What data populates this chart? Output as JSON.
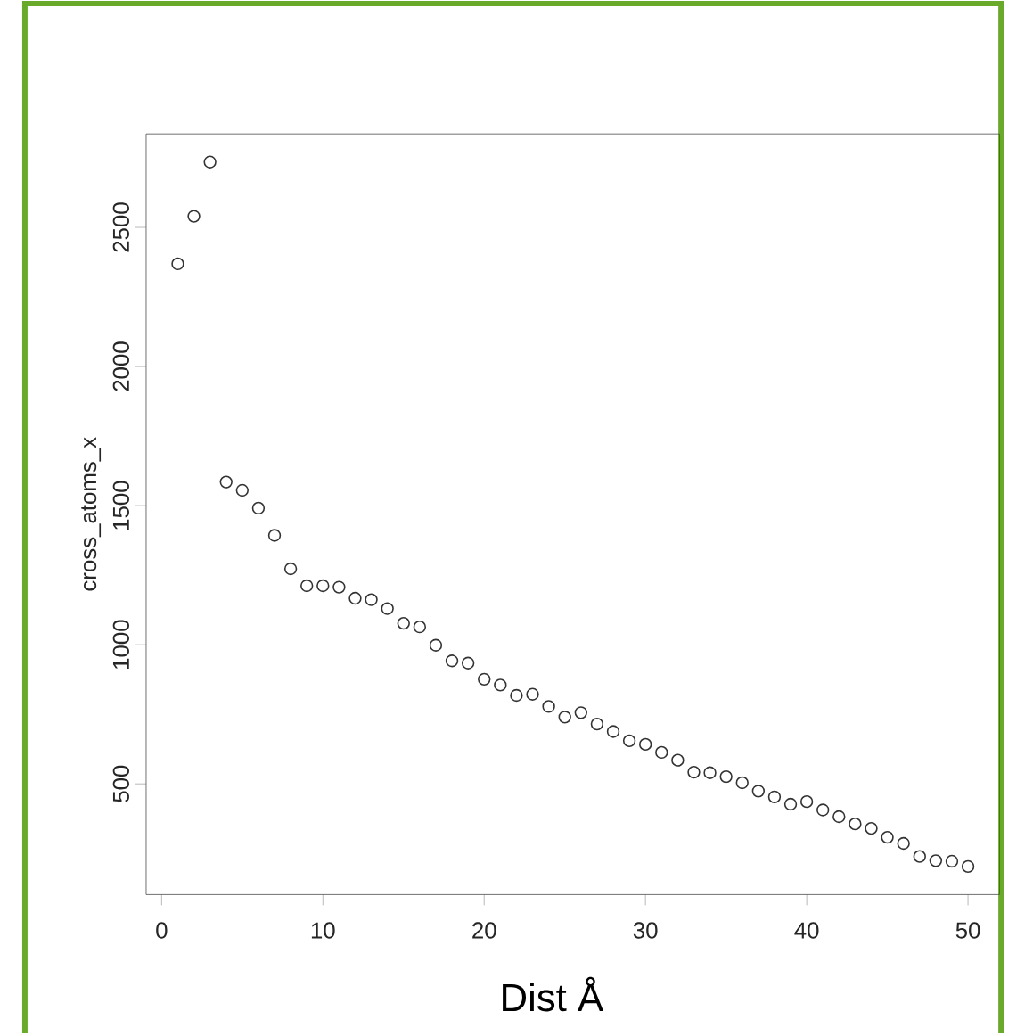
{
  "chart_data": {
    "type": "scatter",
    "xlabel": "Dist Å",
    "ylabel": "cross_atoms_x",
    "color": "#333333",
    "marker": "circle",
    "x": [
      1,
      2,
      3,
      4,
      5,
      6,
      7,
      8,
      9,
      10,
      11,
      12,
      13,
      14,
      15,
      16,
      17,
      18,
      19,
      20,
      21,
      22,
      23,
      24,
      25,
      26,
      27,
      28,
      29,
      30,
      31,
      32,
      33,
      34,
      35,
      36,
      37,
      38,
      39,
      40,
      41,
      42,
      43,
      44,
      45,
      46,
      47,
      48,
      49,
      50
    ],
    "values": [
      2369,
      2540,
      2735,
      1585,
      1555,
      1491,
      1393,
      1273,
      1212,
      1212,
      1207,
      1167,
      1162,
      1130,
      1077,
      1064,
      998,
      942,
      934,
      876,
      855,
      818,
      822,
      778,
      740,
      756,
      715,
      688,
      655,
      642,
      613,
      585,
      542,
      540,
      526,
      504,
      474,
      453,
      427,
      436,
      406,
      382,
      356,
      340,
      308,
      286,
      239,
      224,
      222,
      203
    ],
    "xlim": [
      -0.96,
      51.96
    ],
    "ylim": [
      102,
      2836
    ],
    "xticks": [
      0,
      10,
      20,
      30,
      40,
      50
    ],
    "yticks": [
      500,
      1000,
      1500,
      2000,
      2500
    ]
  }
}
